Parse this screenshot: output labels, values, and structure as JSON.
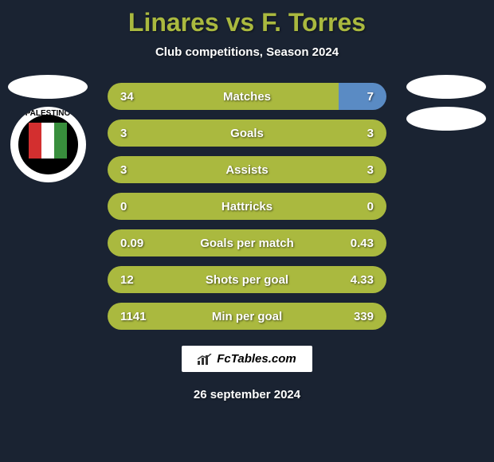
{
  "title": "Linares vs F. Torres",
  "subtitle": "Club competitions, Season 2024",
  "date": "26 september 2024",
  "footer_brand": "FcTables.com",
  "colors": {
    "background": "#1a2332",
    "title": "#aab93f",
    "text": "#ffffff",
    "bar_left": "#aab93f",
    "bar_right": "#5a8bc4"
  },
  "badges": {
    "left_team": "PALESTINO"
  },
  "stats": [
    {
      "label": "Matches",
      "left_value": "34",
      "right_value": "7",
      "left_pct": 82.9
    },
    {
      "label": "Goals",
      "left_value": "3",
      "right_value": "3",
      "left_pct": 100
    },
    {
      "label": "Assists",
      "left_value": "3",
      "right_value": "3",
      "left_pct": 100
    },
    {
      "label": "Hattricks",
      "left_value": "0",
      "right_value": "0",
      "left_pct": 100
    },
    {
      "label": "Goals per match",
      "left_value": "0.09",
      "right_value": "0.43",
      "left_pct": 100
    },
    {
      "label": "Shots per goal",
      "left_value": "12",
      "right_value": "4.33",
      "left_pct": 100
    },
    {
      "label": "Min per goal",
      "left_value": "1141",
      "right_value": "339",
      "left_pct": 100
    }
  ]
}
